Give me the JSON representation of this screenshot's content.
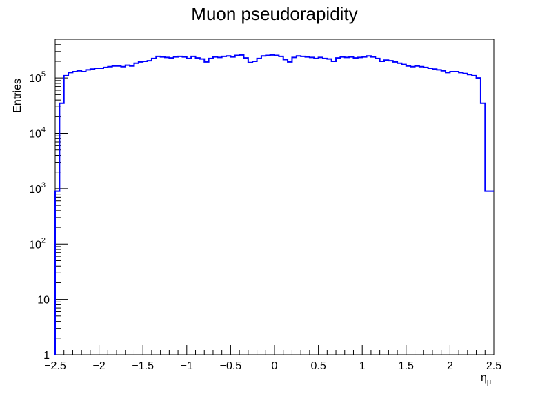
{
  "chart_data": {
    "type": "histogram",
    "title": "Muon pseudorapidity",
    "xlabel_main": "η",
    "xlabel_sub": "μ",
    "ylabel": "Entries",
    "xlim": [
      -2.5,
      2.5
    ],
    "ylim": [
      1,
      500000
    ],
    "yscale": "log",
    "line_color": "#0000ff",
    "x_ticks": [
      {
        "value": -2.5,
        "label": "−2.5"
      },
      {
        "value": -2,
        "label": "−2"
      },
      {
        "value": -1.5,
        "label": "−1.5"
      },
      {
        "value": -1,
        "label": "−1"
      },
      {
        "value": -0.5,
        "label": "−0.5"
      },
      {
        "value": 0,
        "label": "0"
      },
      {
        "value": 0.5,
        "label": "0.5"
      },
      {
        "value": 1,
        "label": "1"
      },
      {
        "value": 1.5,
        "label": "1.5"
      },
      {
        "value": 2,
        "label": "2"
      },
      {
        "value": 2.5,
        "label": "2.5"
      }
    ],
    "y_ticks": [
      {
        "value": 1,
        "base": "1",
        "exp": ""
      },
      {
        "value": 10,
        "base": "10",
        "exp": ""
      },
      {
        "value": 100,
        "base": "10",
        "exp": "2"
      },
      {
        "value": 1000,
        "base": "10",
        "exp": "3"
      },
      {
        "value": 10000,
        "base": "10",
        "exp": "4"
      },
      {
        "value": 100000,
        "base": "10",
        "exp": "5"
      }
    ],
    "bin_edges_range": [
      -2.5,
      2.5
    ],
    "bin_count": 100,
    "values": [
      900,
      35000,
      110000,
      125000,
      130000,
      135000,
      130000,
      140000,
      145000,
      150000,
      150000,
      155000,
      160000,
      165000,
      165000,
      160000,
      170000,
      165000,
      185000,
      195000,
      200000,
      205000,
      225000,
      245000,
      240000,
      235000,
      230000,
      240000,
      245000,
      240000,
      225000,
      245000,
      230000,
      220000,
      195000,
      225000,
      240000,
      235000,
      245000,
      250000,
      240000,
      255000,
      260000,
      230000,
      190000,
      200000,
      225000,
      250000,
      255000,
      260000,
      255000,
      245000,
      215000,
      195000,
      235000,
      250000,
      245000,
      240000,
      235000,
      225000,
      235000,
      225000,
      220000,
      200000,
      230000,
      240000,
      235000,
      240000,
      230000,
      235000,
      240000,
      250000,
      240000,
      225000,
      200000,
      210000,
      205000,
      195000,
      185000,
      175000,
      165000,
      160000,
      165000,
      160000,
      155000,
      150000,
      145000,
      140000,
      135000,
      125000,
      130000,
      130000,
      125000,
      120000,
      115000,
      110000,
      100000,
      35000,
      900,
      900
    ]
  }
}
